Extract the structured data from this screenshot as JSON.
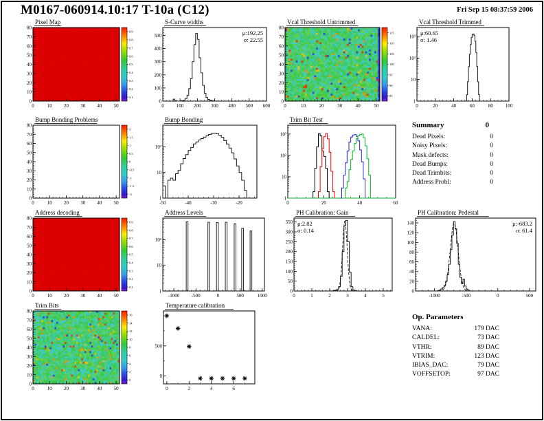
{
  "page": {
    "title": "M0167-060914.10:17 T-10a (C12)",
    "timestamp": "Fri Sep 15 08:37:59 2006"
  },
  "summary": {
    "heading": "Summary",
    "heading_value": "0",
    "rows": [
      {
        "label": "Dead Pixels:",
        "value": "0"
      },
      {
        "label": "Noisy Pixels:",
        "value": "0"
      },
      {
        "label": "Mask defects:",
        "value": "0"
      },
      {
        "label": "Dead Bumps:",
        "value": "0"
      },
      {
        "label": "Dead Trimbits:",
        "value": "0"
      },
      {
        "label": "Address Probl:",
        "value": "0"
      }
    ]
  },
  "op_parameters": {
    "heading": "Op. Parameters",
    "rows": [
      {
        "label": "VANA:",
        "value": "179 DAC"
      },
      {
        "label": "CALDEL:",
        "value": "73 DAC"
      },
      {
        "label": "VTHR:",
        "value": "89 DAC"
      },
      {
        "label": "VTRIM:",
        "value": "123 DAC"
      },
      {
        "label": "IBIAS_DAC:",
        "value": "79 DAC"
      },
      {
        "label": "VOFFSETOP:",
        "value": "97 DAC"
      }
    ]
  },
  "chart_data": [
    {
      "id": "pixel-map",
      "type": "heatmap",
      "title": "Pixel Map",
      "frame": [
        48,
        40,
        126,
        107
      ],
      "x": [
        0,
        52
      ],
      "y": [
        0,
        80
      ],
      "xticks": [
        0,
        10,
        20,
        30,
        40,
        50
      ],
      "yticks": [
        0,
        10,
        20,
        30,
        40,
        50,
        60,
        70,
        80
      ],
      "xminor": 2,
      "yminor": 2,
      "fill": "solid-red",
      "colorbar": {
        "labels": [
          "0.9",
          "0.8",
          "0.7",
          "0.6",
          "0.5",
          "0.4",
          "0.3",
          "0.2",
          "0.1"
        ]
      }
    },
    {
      "id": "scurve-widths",
      "type": "histogram",
      "title": "S-Curve widths",
      "frame": [
        237,
        40,
        151,
        107
      ],
      "x": [
        0,
        600
      ],
      "xticks": [
        0,
        100,
        200,
        300,
        400,
        500,
        600
      ],
      "xminor": 20,
      "y": [
        0,
        560
      ],
      "yticks": [
        0,
        100,
        200,
        300,
        400,
        500
      ],
      "yminor": 20,
      "bin_width": 10,
      "stats": {
        "mu": "192.25",
        "sigma": "22.55",
        "pos": "right"
      },
      "bins": [
        [
          60,
          15
        ],
        [
          70,
          3
        ],
        [
          100,
          2
        ],
        [
          110,
          4
        ],
        [
          120,
          8
        ],
        [
          130,
          20
        ],
        [
          140,
          45
        ],
        [
          150,
          95
        ],
        [
          160,
          170
        ],
        [
          170,
          300
        ],
        [
          180,
          430
        ],
        [
          190,
          515
        ],
        [
          200,
          470
        ],
        [
          210,
          330
        ],
        [
          220,
          215
        ],
        [
          230,
          120
        ],
        [
          240,
          60
        ],
        [
          250,
          28
        ],
        [
          260,
          13
        ],
        [
          270,
          6
        ],
        [
          280,
          3
        ],
        [
          290,
          2
        ],
        [
          300,
          1
        ]
      ]
    },
    {
      "id": "vcal-untrimmed",
      "type": "heatmap",
      "title": "Vcal Threshold Untrimmed",
      "frame": [
        415,
        40,
        138,
        107
      ],
      "x": [
        0,
        52
      ],
      "y": [
        0,
        80
      ],
      "xticks": [
        0,
        10,
        20,
        30,
        40,
        50
      ],
      "yticks": [
        0,
        10,
        20,
        30,
        40,
        50,
        60,
        70,
        80
      ],
      "xminor": 2,
      "yminor": 2,
      "fill": "noise-green",
      "seed": 7,
      "edge": true,
      "colorbar": {
        "labels": [
          "115",
          "110",
          "105",
          "100",
          "95",
          "90",
          "85"
        ]
      }
    },
    {
      "id": "vcal-trimmed",
      "type": "histogram",
      "title": "Vcal Threshold Trimmed",
      "frame": [
        607,
        40,
        134,
        107
      ],
      "x": [
        0,
        100
      ],
      "xticks": [
        0,
        20,
        40,
        60,
        80,
        100
      ],
      "xminor": 4,
      "ylog": true,
      "y": [
        1,
        2600
      ],
      "bin_width": 1,
      "stats": {
        "mu": "60.65",
        "sigma": "1.46",
        "pos": "left"
      },
      "bins": [
        [
          54,
          2
        ],
        [
          55,
          8
        ],
        [
          56,
          40
        ],
        [
          57,
          150
        ],
        [
          58,
          420
        ],
        [
          59,
          900
        ],
        [
          60,
          1250
        ],
        [
          61,
          1300
        ],
        [
          62,
          1100
        ],
        [
          63,
          600
        ],
        [
          64,
          180
        ],
        [
          65,
          40
        ],
        [
          66,
          8
        ],
        [
          67,
          2
        ]
      ]
    },
    {
      "id": "bump-bonding-problems",
      "type": "heatmap",
      "title": "Bump Bonding Problems",
      "frame": [
        48,
        182,
        126,
        106
      ],
      "x": [
        0,
        52
      ],
      "y": [
        0,
        80
      ],
      "xticks": [
        0,
        10,
        20,
        30,
        40,
        50
      ],
      "yticks": [
        0,
        10,
        20,
        30,
        40,
        50,
        60,
        70,
        80
      ],
      "xminor": 2,
      "yminor": 2,
      "fill": "empty",
      "colorbar": {
        "labels": [
          "2",
          "1.5",
          "1",
          "0.5",
          "0",
          "-0.5",
          "-1",
          "-1.5",
          "-2"
        ]
      }
    },
    {
      "id": "bump-bonding",
      "type": "histogram",
      "title": "Bump Bonding",
      "frame": [
        237,
        182,
        137,
        106
      ],
      "x": [
        -50,
        -13
      ],
      "xticks": [
        -50,
        -40,
        -30,
        -20
      ],
      "xminor": 2,
      "ylog": true,
      "y": [
        1,
        700
      ],
      "bin_width": 1,
      "bins": [
        [
          -50,
          3
        ],
        [
          -49,
          1
        ],
        [
          -48,
          5
        ],
        [
          -47,
          6
        ],
        [
          -46,
          5
        ],
        [
          -45,
          9
        ],
        [
          -44,
          12
        ],
        [
          -43,
          22
        ],
        [
          -42,
          35
        ],
        [
          -41,
          50
        ],
        [
          -40,
          72
        ],
        [
          -39,
          95
        ],
        [
          -38,
          130
        ],
        [
          -37,
          155
        ],
        [
          -36,
          185
        ],
        [
          -35,
          210
        ],
        [
          -34,
          240
        ],
        [
          -33,
          270
        ],
        [
          -32,
          305
        ],
        [
          -31,
          335
        ],
        [
          -30,
          345
        ],
        [
          -29,
          325
        ],
        [
          -28,
          285
        ],
        [
          -27,
          235
        ],
        [
          -26,
          175
        ],
        [
          -25,
          130
        ],
        [
          -24,
          90
        ],
        [
          -23,
          58
        ],
        [
          -22,
          34
        ],
        [
          -21,
          18
        ],
        [
          -20,
          10
        ],
        [
          -19,
          5
        ],
        [
          -18,
          2
        ],
        [
          -17,
          1
        ]
      ]
    },
    {
      "id": "trim-bit-test",
      "type": "histogram-multi",
      "title": "Trim Bit Test",
      "frame": [
        419,
        182,
        157,
        106
      ],
      "x": [
        0,
        60
      ],
      "xticks": [
        0,
        20,
        40,
        60
      ],
      "xminor": 5,
      "ylog": true,
      "y": [
        1,
        2600
      ],
      "bin_width": 1,
      "series": [
        {
          "name": "trim-bit-black",
          "color": "#000000",
          "bins": [
            [
              14,
              2
            ],
            [
              15,
              25
            ],
            [
              16,
              250
            ],
            [
              17,
              1050
            ],
            [
              18,
              820
            ],
            [
              19,
              160
            ],
            [
              20,
              90
            ],
            [
              21,
              25
            ],
            [
              22,
              2
            ]
          ]
        },
        {
          "name": "trim-bit-red",
          "color": "#ee0000",
          "bins": [
            [
              17,
              2
            ],
            [
              18,
              30
            ],
            [
              19,
              210
            ],
            [
              20,
              750
            ],
            [
              21,
              1050
            ],
            [
              22,
              600
            ],
            [
              23,
              140
            ],
            [
              24,
              18
            ],
            [
              25,
              2
            ]
          ]
        },
        {
          "name": "trim-bit-blue",
          "color": "#2222dd",
          "bins": [
            [
              29,
              1
            ],
            [
              30,
              3
            ],
            [
              31,
              12
            ],
            [
              32,
              45
            ],
            [
              33,
              160
            ],
            [
              34,
              420
            ],
            [
              35,
              720
            ],
            [
              36,
              900
            ],
            [
              37,
              950
            ],
            [
              38,
              780
            ],
            [
              39,
              480
            ],
            [
              40,
              180
            ],
            [
              41,
              50
            ],
            [
              42,
              8
            ]
          ]
        },
        {
          "name": "trim-bit-green",
          "color": "#00bb22",
          "baseline": true,
          "bins": [
            [
              31,
              1
            ],
            [
              32,
              3
            ],
            [
              33,
              6
            ],
            [
              34,
              22
            ],
            [
              35,
              65
            ],
            [
              36,
              160
            ],
            [
              37,
              360
            ],
            [
              38,
              620
            ],
            [
              39,
              820
            ],
            [
              40,
              950
            ],
            [
              41,
              1000
            ],
            [
              42,
              680
            ],
            [
              43,
              280
            ],
            [
              44,
              70
            ],
            [
              45,
              12
            ]
          ]
        }
      ]
    },
    {
      "id": "address-decoding",
      "type": "heatmap",
      "title": "Address decoding",
      "frame": [
        48,
        317,
        126,
        106
      ],
      "x": [
        0,
        52
      ],
      "y": [
        0,
        80
      ],
      "xticks": [
        0,
        10,
        20,
        30,
        40,
        50
      ],
      "yticks": [
        0,
        10,
        20,
        30,
        40,
        50,
        60,
        70,
        80
      ],
      "xminor": 2,
      "yminor": 2,
      "fill": "solid-red",
      "colorbar": {
        "labels": [
          "0.9",
          "0.8",
          "0.7",
          "0.6",
          "0.5",
          "0.4",
          "0.3",
          "0.2",
          "0.1"
        ]
      }
    },
    {
      "id": "address-levels",
      "type": "histogram-spikes",
      "title": "Address Levels",
      "frame": [
        237,
        317,
        148,
        106
      ],
      "x": [
        -1250,
        1050
      ],
      "xticks": [
        -1000,
        -500,
        0,
        500,
        1000
      ],
      "xminor": 100,
      "ylog": true,
      "y": [
        1,
        700
      ],
      "spike_width": 40,
      "spikes": [
        [
          -700,
          500
        ],
        [
          -210,
          480
        ],
        [
          -15,
          470
        ],
        [
          185,
          480
        ],
        [
          385,
          420
        ],
        [
          555,
          280
        ],
        [
          745,
          220
        ]
      ]
    },
    {
      "id": "ph-gain",
      "type": "histogram",
      "title": "PH Calibration: Gain",
      "frame": [
        428,
        317,
        143,
        106
      ],
      "x": [
        0,
        5.5
      ],
      "xticks": [
        0,
        1,
        2,
        3,
        4,
        5
      ],
      "xminor": 0.2,
      "y": [
        0,
        370
      ],
      "yticks": [
        0,
        50,
        100,
        150,
        200,
        250,
        300,
        350
      ],
      "yminor": 10,
      "bin_width": 0.1,
      "stats": {
        "mu": "2.82",
        "sigma": "0.14",
        "pos": "left"
      },
      "fit": {
        "mu": 2.85,
        "sigma": 0.13,
        "amp": 355
      },
      "bins": [
        [
          2.2,
          2
        ],
        [
          2.3,
          4
        ],
        [
          2.4,
          9
        ],
        [
          2.5,
          22
        ],
        [
          2.6,
          75
        ],
        [
          2.7,
          200
        ],
        [
          2.8,
          330
        ],
        [
          2.9,
          358
        ],
        [
          3.0,
          250
        ],
        [
          3.1,
          95
        ],
        [
          3.2,
          22
        ],
        [
          3.3,
          5
        ],
        [
          3.4,
          2
        ]
      ]
    },
    {
      "id": "ph-pedestal",
      "type": "histogram",
      "title": "PH Calibration: Pedestal",
      "frame": [
        605,
        317,
        175,
        106
      ],
      "x": [
        -1300,
        600
      ],
      "xticks": [
        -1000,
        -500,
        0,
        500
      ],
      "xminor": 100,
      "y": [
        0,
        150
      ],
      "yticks": [
        0,
        20,
        40,
        60,
        80,
        100,
        120,
        140
      ],
      "yminor": 5,
      "bin_width": 25,
      "stats": {
        "mu": "-683.2",
        "sigma": "61.4",
        "pos": "right"
      },
      "fit": {
        "mu": -690,
        "sigma": 62,
        "amp": 140
      },
      "bins": [
        [
          -950,
          1
        ],
        [
          -925,
          2
        ],
        [
          -900,
          4
        ],
        [
          -875,
          7
        ],
        [
          -850,
          12
        ],
        [
          -825,
          20
        ],
        [
          -800,
          33
        ],
        [
          -775,
          55
        ],
        [
          -750,
          85
        ],
        [
          -725,
          115
        ],
        [
          -700,
          143
        ],
        [
          -675,
          128
        ],
        [
          -650,
          98
        ],
        [
          -625,
          55
        ],
        [
          -600,
          28
        ],
        [
          -575,
          15
        ],
        [
          -550,
          24
        ],
        [
          -525,
          10
        ],
        [
          -500,
          4
        ],
        [
          -475,
          2
        ]
      ]
    },
    {
      "id": "trim-bits",
      "type": "heatmap",
      "title": "Trim Bits",
      "frame": [
        48,
        452,
        126,
        106
      ],
      "x": [
        0,
        52
      ],
      "y": [
        0,
        80
      ],
      "xticks": [
        0,
        10,
        20,
        30,
        40,
        50
      ],
      "yticks": [
        0,
        10,
        20,
        30,
        40,
        50,
        60,
        70,
        80
      ],
      "xminor": 2,
      "yminor": 2,
      "fill": "noise-green",
      "seed": 13,
      "colorbar": {
        "labels": [
          "16",
          "14",
          "12",
          "10",
          "8",
          "6",
          "4",
          "2",
          "0"
        ]
      }
    },
    {
      "id": "temperature-calibration",
      "type": "scatter",
      "title": "Temperature calibration",
      "frame": [
        238,
        452,
        133,
        106
      ],
      "x": [
        -0.3,
        7.9
      ],
      "xticks": [
        0,
        2,
        4,
        6
      ],
      "xminor": 1,
      "y": [
        -130,
        1080
      ],
      "yticks": [
        0,
        500
      ],
      "yminor": 250,
      "points": [
        [
          0,
          1000
        ],
        [
          1,
          790
        ],
        [
          2,
          490
        ],
        [
          3,
          -40
        ],
        [
          4,
          -40
        ],
        [
          5,
          -40
        ],
        [
          6,
          -40
        ],
        [
          7,
          -40
        ]
      ]
    }
  ]
}
